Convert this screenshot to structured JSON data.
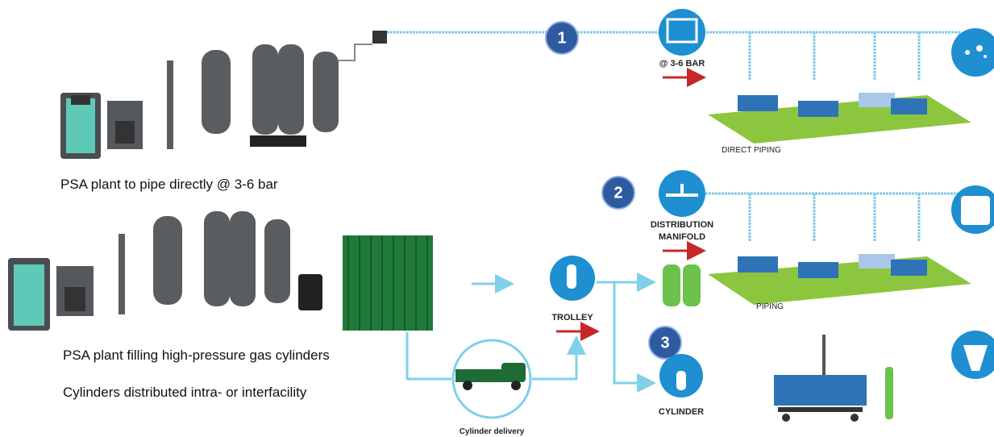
{
  "captions": {
    "direct": "PSA plant to pipe directly @ 3-6 bar",
    "filling": "PSA plant filling high-pressure gas cylinders",
    "distributed": "Cylinders distributed intra- or interfacility"
  },
  "badges": [
    "1",
    "2",
    "3"
  ],
  "labels": {
    "pressure": "@ 3-6 BAR",
    "direct_piping": "DIRECT PIPING",
    "manifold": [
      "DISTRIBUTION",
      "MANIFOLD"
    ],
    "piping": "PIPING",
    "trolley": "TROLLEY",
    "cylinder": "CYLINDER",
    "delivery": "Cylinder delivery"
  }
}
